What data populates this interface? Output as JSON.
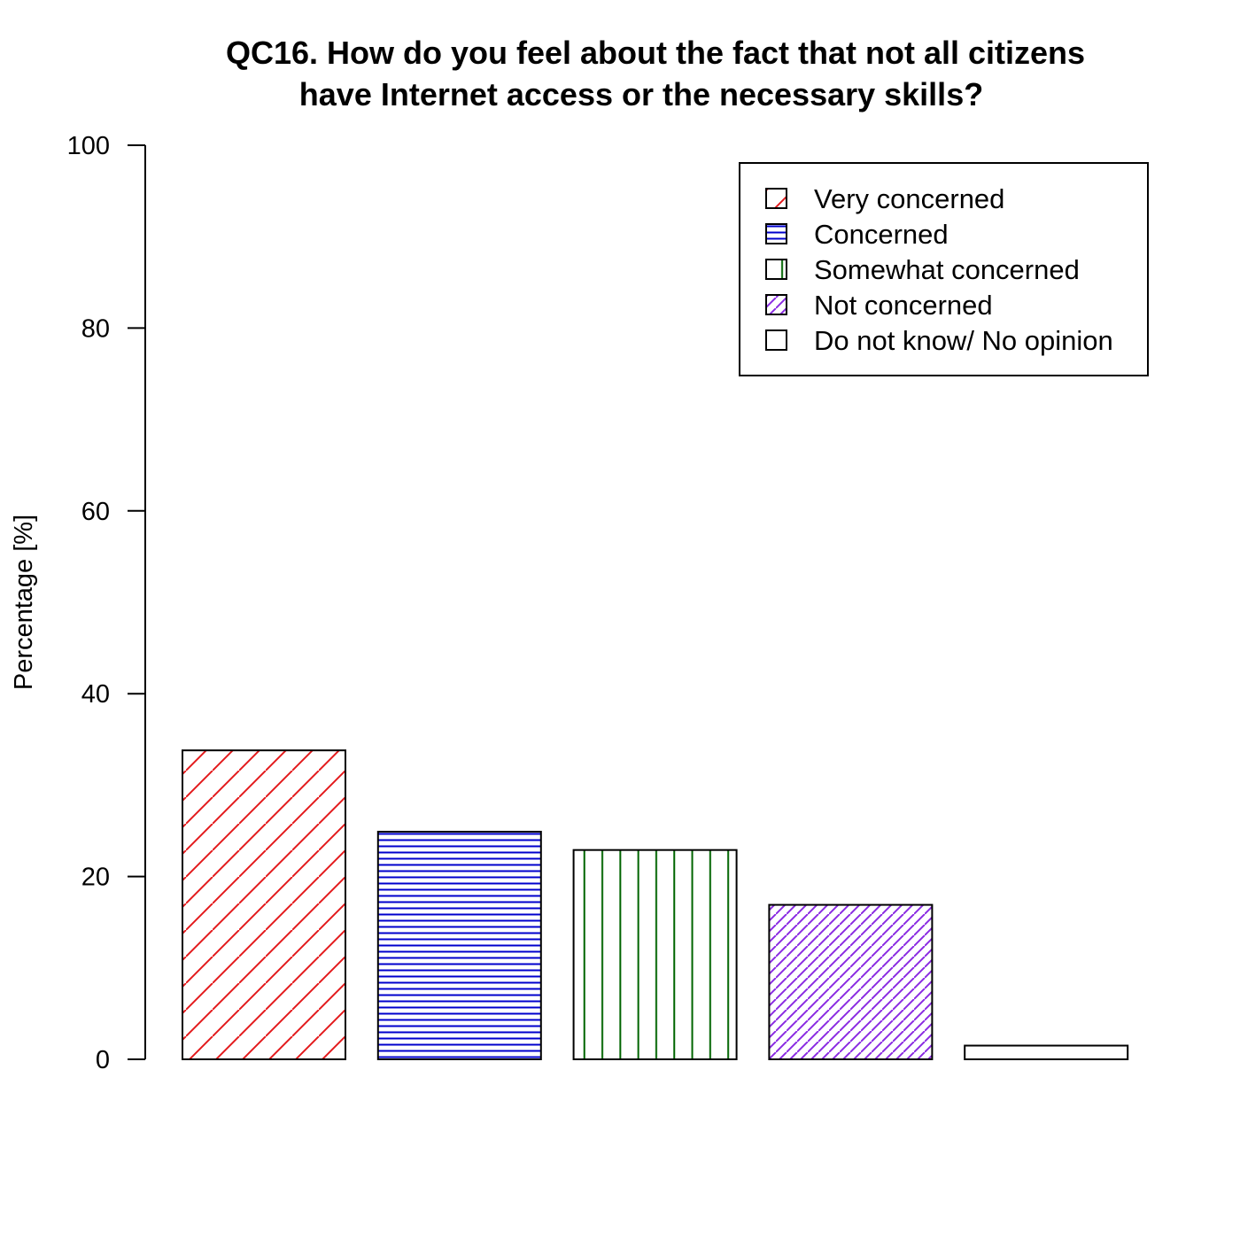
{
  "chart_data": {
    "type": "bar",
    "title_lines": [
      "QC16. How do you feel about the fact that not all citizens",
      "have Internet access or the necessary skills?"
    ],
    "xlabel": "",
    "ylabel": "Percentage [%]",
    "ylim": [
      0,
      100
    ],
    "yticks": [
      0,
      20,
      40,
      60,
      80,
      100
    ],
    "grid": false,
    "legend_position": "top-right",
    "categories": [
      "Very concerned",
      "Concerned",
      "Somewhat concerned",
      "Not concerned",
      "Do not know/ No opinion"
    ],
    "values": [
      33.8,
      24.9,
      22.9,
      16.9,
      1.5
    ],
    "colors": [
      "#e31a1c",
      "#0000cc",
      "#006400",
      "#8a2be2",
      "#ff8c00"
    ],
    "patterns": [
      "diagonal",
      "horizontal",
      "vertical",
      "dense-diagonal",
      "none"
    ]
  }
}
